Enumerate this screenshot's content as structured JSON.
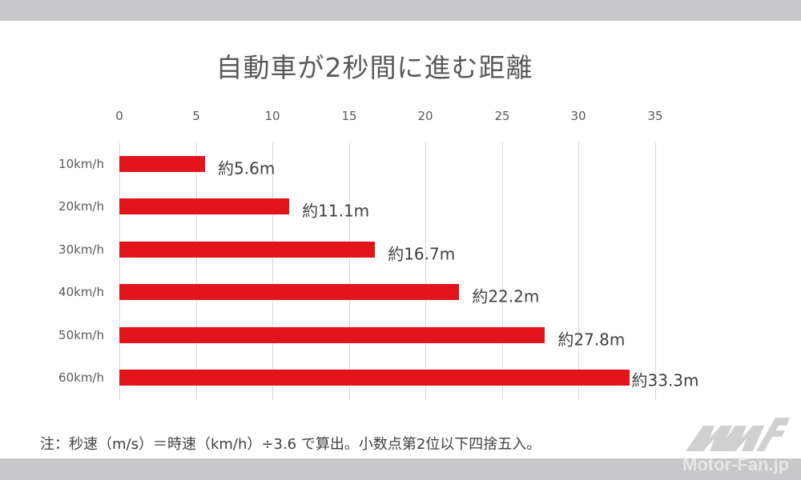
{
  "title": "自動車が2秒間に進む距離",
  "note": "注：秒速（m/s）＝時速（km/h）÷3.6 で算出。小数点第2位以下四捨五入。",
  "watermark": {
    "text": "Motor-Fan.jp",
    "logo": "mf-logo-icon"
  },
  "colors": {
    "bar": "#e3141b",
    "band": "#c8c8ca",
    "grid": "#d9d9d9",
    "text": "#595959"
  },
  "axis": {
    "ticks": [
      "0",
      "5",
      "10",
      "15",
      "20",
      "25",
      "30",
      "35"
    ]
  },
  "categories": [
    "10km/h",
    "20km/h",
    "30km/h",
    "40km/h",
    "50km/h",
    "60km/h"
  ],
  "labels": [
    "約5.6m",
    "約11.1m",
    "約16.7m",
    "約22.2m",
    "約27.8m",
    "約33.3m"
  ],
  "chart_data": {
    "type": "bar",
    "orientation": "horizontal",
    "title": "自動車が2秒間に進む距離",
    "categories": [
      "10km/h",
      "20km/h",
      "30km/h",
      "40km/h",
      "50km/h",
      "60km/h"
    ],
    "values": [
      5.6,
      11.1,
      16.7,
      22.2,
      27.8,
      33.3
    ],
    "data_labels": [
      "約5.6m",
      "約11.1m",
      "約16.7m",
      "約22.2m",
      "約27.8m",
      "約33.3m"
    ],
    "xlabel": "",
    "ylabel": "",
    "xlim": [
      0,
      35
    ],
    "x_ticks": [
      0,
      5,
      10,
      15,
      20,
      25,
      30,
      35
    ],
    "x_axis_position": "top",
    "grid": true,
    "legend": null,
    "series_color": "#e3141b",
    "annotation": "注：秒速（m/s）＝時速（km/h）÷3.6 で算出。小数点第2位以下四捨五入。"
  }
}
